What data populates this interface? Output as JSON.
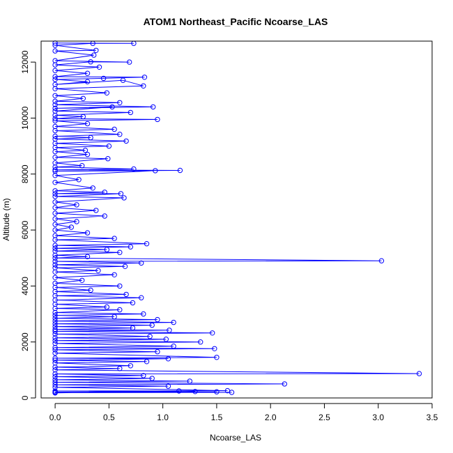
{
  "chart_data": {
    "type": "scatter",
    "title": "ATOM1 Northeast_Pacific Ncoarse_LAS",
    "xlabel": "Ncoarse_LAS",
    "ylabel": "Altitude (m)",
    "xlim": [
      -0.13,
      3.5
    ],
    "ylim": [
      0,
      12750
    ],
    "x_ticks": [
      0.0,
      0.5,
      1.0,
      1.5,
      2.0,
      2.5,
      3.0,
      3.5
    ],
    "x_tick_labels": [
      "0.0",
      "0.5",
      "1.0",
      "1.5",
      "2.0",
      "2.5",
      "3.0",
      "3.5"
    ],
    "y_ticks": [
      0,
      2000,
      4000,
      6000,
      8000,
      10000,
      12000
    ],
    "y_tick_labels": [
      "0",
      "2000",
      "4000",
      "6000",
      "8000",
      "10000",
      "12000"
    ],
    "series_color": "#0000ff",
    "marker": "open-circle",
    "connected_lines": true,
    "grid": false,
    "legend": "none",
    "series": [
      {
        "points": [
          [
            0.0,
            12680
          ],
          [
            0.73,
            12670
          ],
          [
            0.35,
            12670
          ],
          [
            0.0,
            12600
          ],
          [
            0.38,
            12420
          ],
          [
            0.0,
            12400
          ],
          [
            0.36,
            12250
          ],
          [
            0.0,
            12050
          ],
          [
            0.69,
            12000
          ],
          [
            0.33,
            12010
          ],
          [
            0.0,
            11900
          ],
          [
            0.41,
            11820
          ],
          [
            0.0,
            11700
          ],
          [
            0.3,
            11600
          ],
          [
            0.0,
            11480
          ],
          [
            0.83,
            11460
          ],
          [
            0.45,
            11420
          ],
          [
            0.0,
            11380
          ],
          [
            0.3,
            11300
          ],
          [
            0.0,
            11200
          ],
          [
            0.63,
            11350
          ],
          [
            0.82,
            11150
          ],
          [
            0.0,
            11050
          ],
          [
            0.48,
            10900
          ],
          [
            0.0,
            10800
          ],
          [
            0.26,
            10700
          ],
          [
            0.0,
            10600
          ],
          [
            0.6,
            10550
          ],
          [
            0.0,
            10480
          ],
          [
            0.91,
            10400
          ],
          [
            0.0,
            10350
          ],
          [
            0.53,
            10400
          ],
          [
            0.0,
            10250
          ],
          [
            0.7,
            10200
          ],
          [
            0.0,
            10100
          ],
          [
            0.26,
            10050
          ],
          [
            0.0,
            9980
          ],
          [
            0.95,
            9950
          ],
          [
            0.0,
            9900
          ],
          [
            0.3,
            9800
          ],
          [
            0.0,
            9700
          ],
          [
            0.55,
            9600
          ],
          [
            0.0,
            9550
          ],
          [
            0.6,
            9420
          ],
          [
            0.0,
            9350
          ],
          [
            0.33,
            9300
          ],
          [
            0.0,
            9250
          ],
          [
            0.66,
            9180
          ],
          [
            0.0,
            9100
          ],
          [
            0.5,
            9000
          ],
          [
            0.0,
            8950
          ],
          [
            0.28,
            8850
          ],
          [
            0.0,
            8800
          ],
          [
            0.3,
            8700
          ],
          [
            0.0,
            8600
          ],
          [
            0.49,
            8550
          ],
          [
            0.0,
            8400
          ],
          [
            0.25,
            8300
          ],
          [
            0.0,
            8250
          ],
          [
            0.73,
            8180
          ],
          [
            0.0,
            8150
          ],
          [
            1.16,
            8130
          ],
          [
            0.0,
            8100
          ],
          [
            0.93,
            8120
          ],
          [
            0.0,
            7950
          ],
          [
            0.22,
            7800
          ],
          [
            0.0,
            7700
          ],
          [
            0.35,
            7500
          ],
          [
            0.0,
            7400
          ],
          [
            0.46,
            7350
          ],
          [
            0.0,
            7300
          ],
          [
            0.61,
            7300
          ],
          [
            0.0,
            7200
          ],
          [
            0.64,
            7150
          ],
          [
            0.0,
            7000
          ],
          [
            0.2,
            6900
          ],
          [
            0.0,
            6800
          ],
          [
            0.38,
            6700
          ],
          [
            0.0,
            6600
          ],
          [
            0.46,
            6500
          ],
          [
            0.0,
            6400
          ],
          [
            0.2,
            6300
          ],
          [
            0.0,
            6200
          ],
          [
            0.15,
            6100
          ],
          [
            0.0,
            6000
          ],
          [
            0.3,
            5900
          ],
          [
            0.0,
            5800
          ],
          [
            0.55,
            5700
          ],
          [
            0.0,
            5650
          ],
          [
            0.85,
            5510
          ],
          [
            0.0,
            5450
          ],
          [
            0.7,
            5400
          ],
          [
            0.0,
            5350
          ],
          [
            0.48,
            5300
          ],
          [
            0.0,
            5250
          ],
          [
            0.6,
            5200
          ],
          [
            0.0,
            5100
          ],
          [
            0.3,
            5050
          ],
          [
            0.0,
            5000
          ],
          [
            3.03,
            4900
          ],
          [
            0.0,
            4880
          ],
          [
            0.8,
            4820
          ],
          [
            0.0,
            4760
          ],
          [
            0.65,
            4700
          ],
          [
            0.0,
            4650
          ],
          [
            0.4,
            4550
          ],
          [
            0.0,
            4500
          ],
          [
            0.55,
            4400
          ],
          [
            0.0,
            4300
          ],
          [
            0.25,
            4200
          ],
          [
            0.0,
            4100
          ],
          [
            0.6,
            4000
          ],
          [
            0.0,
            3950
          ],
          [
            0.33,
            3850
          ],
          [
            0.0,
            3800
          ],
          [
            0.66,
            3700
          ],
          [
            0.0,
            3650
          ],
          [
            0.8,
            3580
          ],
          [
            0.0,
            3500
          ],
          [
            0.72,
            3400
          ],
          [
            0.0,
            3350
          ],
          [
            0.48,
            3250
          ],
          [
            0.0,
            3200
          ],
          [
            0.6,
            3150
          ],
          [
            0.0,
            3050
          ],
          [
            0.82,
            3000
          ],
          [
            0.0,
            2950
          ],
          [
            0.55,
            2900
          ],
          [
            0.0,
            2850
          ],
          [
            0.95,
            2800
          ],
          [
            0.0,
            2750
          ],
          [
            1.1,
            2700
          ],
          [
            0.0,
            2650
          ],
          [
            0.9,
            2600
          ],
          [
            0.0,
            2550
          ],
          [
            0.72,
            2500
          ],
          [
            0.0,
            2450
          ],
          [
            1.06,
            2420
          ],
          [
            0.0,
            2380
          ],
          [
            1.46,
            2320
          ],
          [
            0.0,
            2280
          ],
          [
            0.88,
            2200
          ],
          [
            0.0,
            2150
          ],
          [
            1.03,
            2100
          ],
          [
            0.0,
            2050
          ],
          [
            1.35,
            2000
          ],
          [
            0.0,
            1950
          ],
          [
            1.1,
            1850
          ],
          [
            0.0,
            1800
          ],
          [
            1.48,
            1760
          ],
          [
            0.0,
            1720
          ],
          [
            0.95,
            1650
          ],
          [
            0.0,
            1600
          ],
          [
            1.5,
            1450
          ],
          [
            0.0,
            1420
          ],
          [
            1.05,
            1400
          ],
          [
            0.0,
            1350
          ],
          [
            0.85,
            1300
          ],
          [
            0.0,
            1250
          ],
          [
            0.7,
            1150
          ],
          [
            0.0,
            1100
          ],
          [
            0.6,
            1050
          ],
          [
            0.0,
            1000
          ],
          [
            3.38,
            870
          ],
          [
            0.0,
            860
          ],
          [
            0.82,
            800
          ],
          [
            0.0,
            760
          ],
          [
            0.9,
            700
          ],
          [
            0.0,
            650
          ],
          [
            1.25,
            600
          ],
          [
            0.0,
            560
          ],
          [
            2.13,
            500
          ],
          [
            0.0,
            470
          ],
          [
            1.05,
            420
          ],
          [
            0.0,
            380
          ],
          [
            1.6,
            260
          ],
          [
            0.0,
            250
          ],
          [
            1.5,
            220
          ],
          [
            0.0,
            210
          ],
          [
            1.64,
            200
          ],
          [
            0.0,
            190
          ],
          [
            1.3,
            230
          ],
          [
            0.0,
            200
          ],
          [
            1.15,
            250
          ],
          [
            0.0,
            180
          ]
        ]
      }
    ]
  }
}
